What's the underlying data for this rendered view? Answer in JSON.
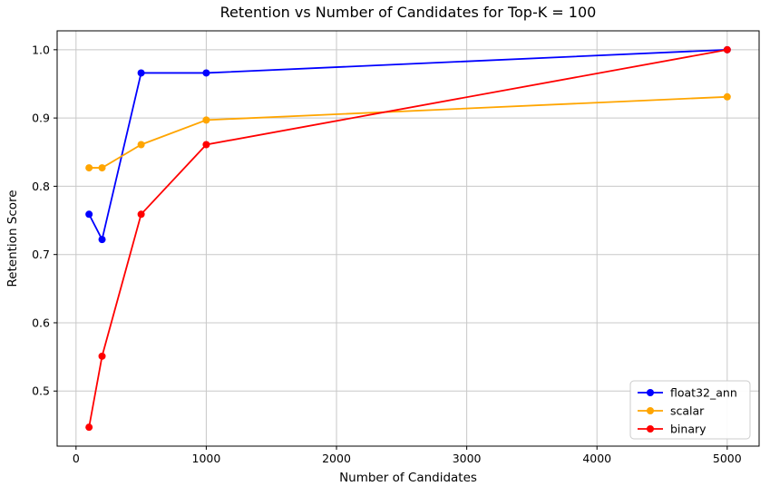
{
  "chart_data": {
    "type": "line",
    "title": "Retention vs Number of Candidates for Top-K = 100",
    "xlabel": "Number of Candidates",
    "ylabel": "Retention Score",
    "x": [
      100,
      200,
      500,
      1000,
      5000
    ],
    "series": [
      {
        "name": "float32_ann",
        "color": "#0000ff",
        "values": [
          0.759,
          0.722,
          0.966,
          0.966,
          1.0
        ]
      },
      {
        "name": "scalar",
        "color": "#ffa500",
        "values": [
          0.827,
          0.827,
          0.861,
          0.897,
          0.931
        ]
      },
      {
        "name": "binary",
        "color": "#ff0000",
        "values": [
          0.447,
          0.551,
          0.759,
          0.861,
          1.0
        ]
      }
    ],
    "xticks": [
      0,
      1000,
      2000,
      3000,
      4000,
      5000
    ],
    "yticks": [
      0.5,
      0.6,
      0.7,
      0.8,
      0.9,
      1.0
    ],
    "xlim": [
      -145,
      5245
    ],
    "ylim": [
      0.4193,
      1.0277
    ],
    "grid": true,
    "legend": {
      "position": "lower right",
      "entries": [
        "float32_ann",
        "scalar",
        "binary"
      ]
    },
    "colors": {
      "grid": "#c8c8c8",
      "spine": "#000000",
      "background": "#ffffff",
      "legend_border": "#cccccc",
      "tick_text": "#000000"
    }
  }
}
